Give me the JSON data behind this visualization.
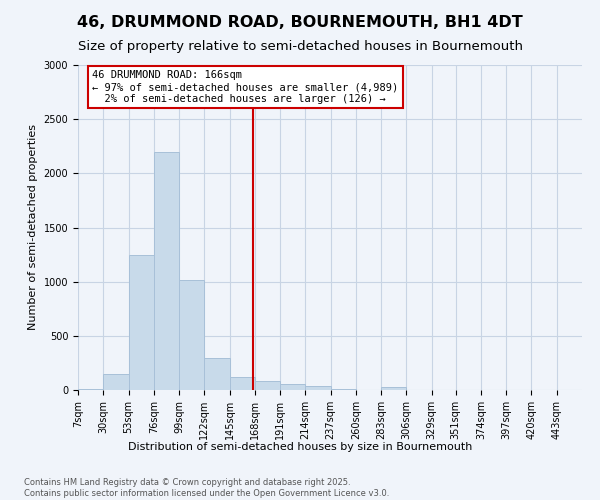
{
  "title": "46, DRUMMOND ROAD, BOURNEMOUTH, BH1 4DT",
  "subtitle": "Size of property relative to semi-detached houses in Bournemouth",
  "xlabel": "Distribution of semi-detached houses by size in Bournemouth",
  "ylabel": "Number of semi-detached properties",
  "footer_line1": "Contains HM Land Registry data © Crown copyright and database right 2025.",
  "footer_line2": "Contains public sector information licensed under the Open Government Licence v3.0.",
  "annotation_title": "46 DRUMMOND ROAD: 166sqm",
  "annotation_line2": "← 97% of semi-detached houses are smaller (4,989)",
  "annotation_line3": "2% of semi-detached houses are larger (126) →",
  "property_size": 166,
  "bar_color": "#c8daea",
  "bar_edge_color": "#a8c0d8",
  "vline_color": "#cc0000",
  "annotation_box_color": "#ffffff",
  "annotation_box_edge": "#cc0000",
  "grid_color": "#c8d4e4",
  "background_color": "#f0f4fa",
  "bins": [
    7,
    30,
    53,
    76,
    99,
    122,
    145,
    168,
    191,
    214,
    237,
    260,
    283,
    306,
    329,
    351,
    374,
    397,
    420,
    443,
    466
  ],
  "counts": [
    8,
    150,
    1250,
    2200,
    1020,
    295,
    120,
    80,
    58,
    38,
    10,
    4,
    28,
    4,
    0,
    0,
    0,
    0,
    0,
    0
  ],
  "ylim": [
    0,
    3000
  ],
  "yticks": [
    0,
    500,
    1000,
    1500,
    2000,
    2500,
    3000
  ],
  "title_fontsize": 11.5,
  "subtitle_fontsize": 9.5,
  "axis_label_fontsize": 8,
  "tick_fontsize": 7,
  "annotation_fontsize": 7.5,
  "footer_fontsize": 6
}
